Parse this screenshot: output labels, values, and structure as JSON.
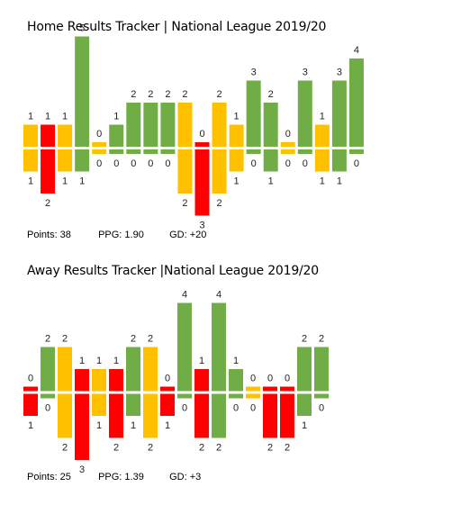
{
  "colors": {
    "win": "#70AD47",
    "draw": "#FFC000",
    "loss": "#FF0000"
  },
  "home": {
    "title": "Home Results Tracker | National League 2019/20",
    "stats": {
      "points": "Points: 38",
      "ppg": "PPG: 1.90",
      "gd": "GD: +20"
    }
  },
  "away": {
    "title": "Away Results Tracker |National League 2019/20",
    "stats": {
      "points": "Points: 25",
      "ppg": "PPG: 1.39",
      "gd": "GD: +3"
    }
  },
  "chart_data": [
    {
      "type": "bar",
      "title": "Home Results Tracker | National League 2019/20",
      "series": [
        {
          "name": "",
          "values": [
            1,
            1,
            1,
            5,
            0,
            1,
            2,
            2,
            2,
            2,
            0,
            2,
            1,
            3,
            2,
            0,
            3,
            1,
            3,
            4
          ]
        },
        {
          "name": "",
          "values": [
            1,
            2,
            1,
            1,
            0,
            0,
            0,
            0,
            0,
            2,
            3,
            2,
            1,
            0,
            1,
            0,
            0,
            1,
            1,
            0
          ]
        }
      ]
    },
    {
      "type": "bar",
      "title": "Away Results Tracker |National League 2019/20",
      "series": [
        {
          "name": "",
          "values": [
            0,
            2,
            2,
            1,
            1,
            1,
            2,
            2,
            0,
            4,
            1,
            4,
            1,
            0,
            0,
            0,
            2,
            2
          ]
        },
        {
          "name": "",
          "values": [
            1,
            0,
            2,
            3,
            1,
            2,
            1,
            2,
            1,
            0,
            2,
            2,
            0,
            0,
            2,
            2,
            1,
            0
          ]
        }
      ]
    }
  ]
}
